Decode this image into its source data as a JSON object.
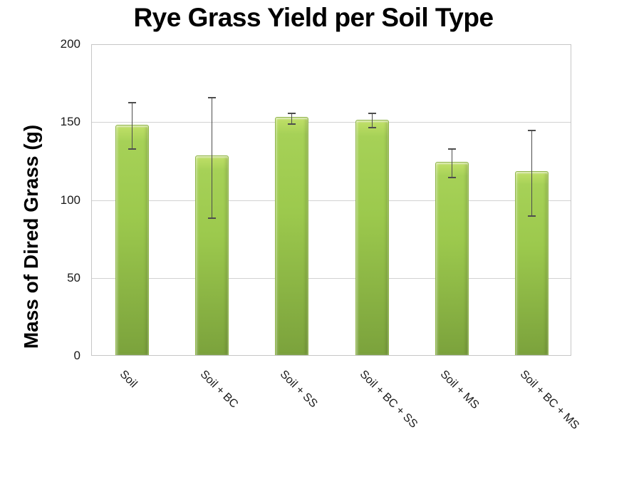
{
  "page": {
    "background": "#ffffff"
  },
  "chart_data": {
    "type": "bar",
    "title": "Rye Grass Yield per Soil Type",
    "ylabel": "Mass of Dired Grass (g)",
    "xlabel": "",
    "categories": [
      "Soil",
      "Soil + BC",
      "Soil + SS",
      "Soil + BC + SS",
      "Soil + MS",
      "Soil + BC + MS"
    ],
    "values": [
      148,
      128,
      153,
      151,
      124,
      118
    ],
    "error_bars": {
      "low": [
        133,
        89,
        149,
        147,
        115,
        90
      ],
      "high": [
        163,
        166,
        156,
        156,
        133,
        145
      ]
    },
    "ylim": [
      0,
      200
    ],
    "yticks": [
      0,
      50,
      100,
      150,
      200
    ],
    "grid": "horizontal-only",
    "legend": "none",
    "colors": {
      "bar_top_highlight": "#c1e068",
      "bar_body_light": "#a6d157",
      "bar_body_mid": "#9cc94d",
      "bar_body_dark": "#7ba23c",
      "bar_border": "#8fb548",
      "error_bar": "#4d4d4d",
      "gridline": "#d2d2d2",
      "plot_border": "#c6c6c6",
      "text": "#1a1a1a",
      "title_text": "#000000"
    }
  }
}
